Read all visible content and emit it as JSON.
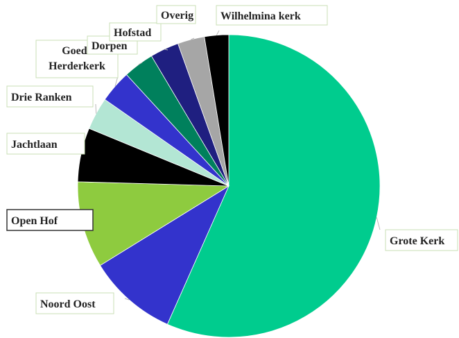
{
  "chart_data": {
    "type": "pie",
    "title": "",
    "start_angle_deg": 0,
    "direction": "clockwise",
    "slices": [
      {
        "label": "Grote Kerk",
        "value": 57.0,
        "color": "#00cc8e"
      },
      {
        "label": "Noord Oost",
        "value": 9.6,
        "color": "#3333cc"
      },
      {
        "label": "Open Hof",
        "value": 9.3,
        "color": "#8ecb3f"
      },
      {
        "label": "Jachtlaan",
        "value": 5.8,
        "color": "#000000"
      },
      {
        "label": "Drie Ranken",
        "value": 3.5,
        "color": "#b3e6d4"
      },
      {
        "label": "Goede Herderkerk",
        "value": 3.5,
        "color": "#3333cc"
      },
      {
        "label": "Dorpen",
        "value": 3.3,
        "color": "#00805c"
      },
      {
        "label": "Hofstad",
        "value": 3.1,
        "color": "#1f1f80"
      },
      {
        "label": "Overig",
        "value": 2.9,
        "color": "#a6a6a6"
      },
      {
        "label": "Wilhelmina kerk",
        "value": 2.6,
        "color": "#000000"
      }
    ]
  }
}
